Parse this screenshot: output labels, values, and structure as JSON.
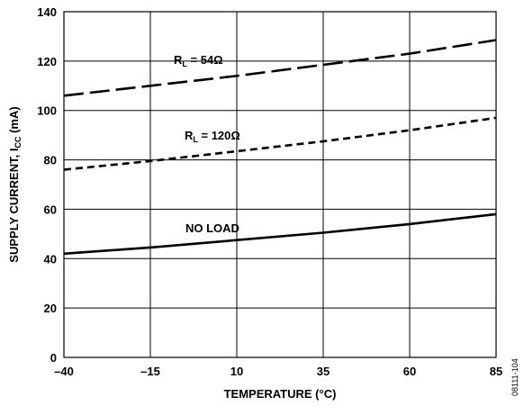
{
  "chart_data": {
    "type": "line",
    "xlabel": "TEMPERATURE (°C)",
    "ylabel": {
      "main": "SUPPLY CURRENT, I",
      "sub": "CC",
      "unit": " (mA)"
    },
    "xlim": [
      -40,
      85
    ],
    "ylim": [
      0,
      140
    ],
    "x_ticks": [
      {
        "value": -40,
        "label": "–40"
      },
      {
        "value": -15,
        "label": "–15"
      },
      {
        "value": 10,
        "label": "10"
      },
      {
        "value": 35,
        "label": "35"
      },
      {
        "value": 60,
        "label": "60"
      },
      {
        "value": 85,
        "label": "85"
      }
    ],
    "y_ticks": [
      {
        "value": 0,
        "label": "0"
      },
      {
        "value": 20,
        "label": "20"
      },
      {
        "value": 40,
        "label": "40"
      },
      {
        "value": 60,
        "label": "60"
      },
      {
        "value": 80,
        "label": "80"
      },
      {
        "value": 100,
        "label": "100"
      },
      {
        "value": 120,
        "label": "120"
      },
      {
        "value": 140,
        "label": "140"
      }
    ],
    "grid": true,
    "series": [
      {
        "id": "rl54",
        "label": {
          "main": "R",
          "sub": "L",
          "rest": " = 54Ω"
        },
        "dash": "long",
        "x": [
          -40,
          -15,
          10,
          35,
          60,
          85
        ],
        "y": [
          106,
          110,
          114,
          118.5,
          123,
          128.5
        ]
      },
      {
        "id": "rl120",
        "label": {
          "main": "R",
          "sub": "L",
          "rest": " = 120Ω"
        },
        "dash": "short",
        "x": [
          -40,
          -15,
          10,
          35,
          60,
          85
        ],
        "y": [
          76,
          79.5,
          83.5,
          87.5,
          92,
          97
        ]
      },
      {
        "id": "noload",
        "label": {
          "main": "NO LOAD"
        },
        "dash": "solid",
        "x": [
          -40,
          -15,
          10,
          35,
          60,
          85
        ],
        "y": [
          42,
          44.5,
          47.5,
          50.5,
          54,
          58
        ]
      }
    ]
  },
  "figure_code": "08111-104"
}
